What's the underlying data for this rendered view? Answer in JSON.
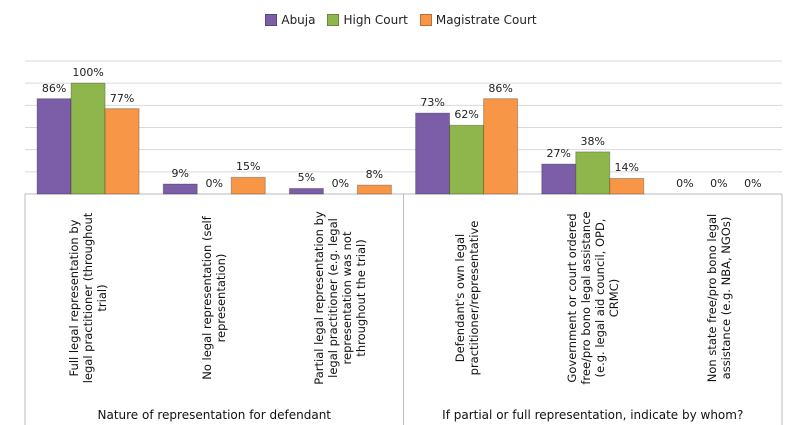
{
  "chart_data": {
    "type": "bar",
    "categories": [
      "Full legal representation by legal practitioner (throughout trial)",
      "No legal representation (self representation)",
      "Partial legal representation by legal practitioner (e.g. legal representation was not throughout the trial)",
      "Defendant's own legal practitioner/representative",
      "Government or court ordered free/pro bono legal assistance (e.g. legal aid council, OPD, CRMC)",
      "Non state free/pro bono legal assistance (e.g. NBA, NGOs)"
    ],
    "group_labels": [
      "Nature of representation for defendant",
      "If partial or full representation, indicate by whom?"
    ],
    "series": [
      {
        "name": "Abuja",
        "color": "#7b5ea7",
        "values": [
          86,
          9,
          5,
          73,
          27,
          0
        ],
        "value_labels": [
          "86%",
          "9%",
          "5%",
          "73%",
          "27%",
          "0%"
        ]
      },
      {
        "name": "High Court",
        "color": "#8fb64c",
        "values": [
          100,
          0,
          0,
          62,
          38,
          0
        ],
        "value_labels": [
          "100%",
          "0%",
          "0%",
          "62%",
          "38%",
          "0%"
        ]
      },
      {
        "name": "Magistrate Court",
        "color": "#f79646",
        "values": [
          77,
          15,
          8,
          86,
          14,
          0
        ],
        "value_labels": [
          "77%",
          "15%",
          "8%",
          "86%",
          "14%",
          "0%"
        ]
      }
    ],
    "ylim": [
      0,
      120
    ],
    "yticks": [
      0,
      20,
      40,
      60,
      80,
      100,
      120
    ],
    "grid": true,
    "legend": "top"
  }
}
